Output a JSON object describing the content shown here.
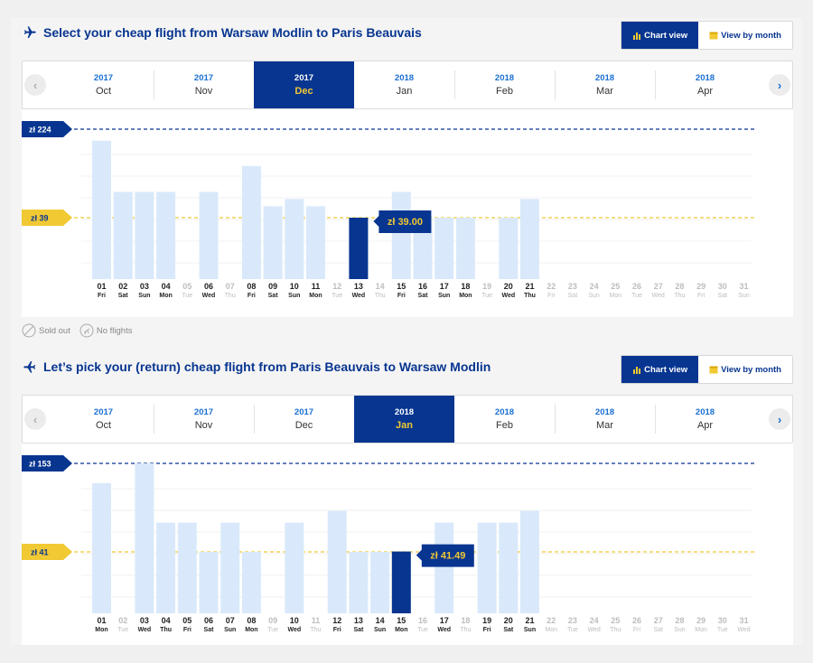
{
  "outbound": {
    "title": "Select your cheap flight from Warsaw Modlin to Paris Beauvais",
    "toggle": {
      "chart_label": "Chart view",
      "month_label": "View by month"
    },
    "months": [
      {
        "year": "2017",
        "month": "Oct",
        "selected": false
      },
      {
        "year": "2017",
        "month": "Nov",
        "selected": false
      },
      {
        "year": "2017",
        "month": "Dec",
        "selected": true
      },
      {
        "year": "2018",
        "month": "Jan",
        "selected": false
      },
      {
        "year": "2018",
        "month": "Feb",
        "selected": false
      },
      {
        "year": "2018",
        "month": "Mar",
        "selected": false
      },
      {
        "year": "2018",
        "month": "Apr",
        "selected": false
      }
    ],
    "max_label": "zł 224",
    "min_label": "zł 39",
    "tooltip": "zł 39.00",
    "chart_data": {
      "type": "bar",
      "max_price": 224,
      "min_price": 39,
      "selected_day": "13",
      "days": [
        {
          "d": "01",
          "w": "Fri",
          "v": 200,
          "a": true
        },
        {
          "d": "02",
          "w": "Sat",
          "v": 93,
          "a": true
        },
        {
          "d": "03",
          "w": "Sun",
          "v": 93,
          "a": true
        },
        {
          "d": "04",
          "w": "Mon",
          "v": 93,
          "a": true
        },
        {
          "d": "05",
          "w": "Tue",
          "v": null,
          "a": false
        },
        {
          "d": "06",
          "w": "Wed",
          "v": 93,
          "a": true
        },
        {
          "d": "07",
          "w": "Thu",
          "v": null,
          "a": false
        },
        {
          "d": "08",
          "w": "Fri",
          "v": 147,
          "a": true
        },
        {
          "d": "09",
          "w": "Sat",
          "v": 63,
          "a": true
        },
        {
          "d": "10",
          "w": "Sun",
          "v": 78,
          "a": true
        },
        {
          "d": "11",
          "w": "Mon",
          "v": 63,
          "a": true
        },
        {
          "d": "12",
          "w": "Tue",
          "v": null,
          "a": false
        },
        {
          "d": "13",
          "w": "Wed",
          "v": 39,
          "a": true
        },
        {
          "d": "14",
          "w": "Thu",
          "v": null,
          "a": false
        },
        {
          "d": "15",
          "w": "Fri",
          "v": 93,
          "a": true
        },
        {
          "d": "16",
          "w": "Sat",
          "v": 39,
          "a": true
        },
        {
          "d": "17",
          "w": "Sun",
          "v": 39,
          "a": true
        },
        {
          "d": "18",
          "w": "Mon",
          "v": 39,
          "a": true
        },
        {
          "d": "19",
          "w": "Tue",
          "v": null,
          "a": false
        },
        {
          "d": "20",
          "w": "Wed",
          "v": 39,
          "a": true
        },
        {
          "d": "21",
          "w": "Thu",
          "v": 78,
          "a": true
        },
        {
          "d": "22",
          "w": "Fri",
          "v": null,
          "a": false
        },
        {
          "d": "23",
          "w": "Sat",
          "v": null,
          "a": false
        },
        {
          "d": "24",
          "w": "Sun",
          "v": null,
          "a": false
        },
        {
          "d": "25",
          "w": "Mon",
          "v": null,
          "a": false
        },
        {
          "d": "26",
          "w": "Tue",
          "v": null,
          "a": false
        },
        {
          "d": "27",
          "w": "Wed",
          "v": null,
          "a": false
        },
        {
          "d": "28",
          "w": "Thu",
          "v": null,
          "a": false
        },
        {
          "d": "29",
          "w": "Fri",
          "v": null,
          "a": false
        },
        {
          "d": "30",
          "w": "Sat",
          "v": null,
          "a": false
        },
        {
          "d": "31",
          "w": "Sun",
          "v": null,
          "a": false
        }
      ]
    }
  },
  "legend": {
    "sold_out": "Sold out",
    "no_flights": "No flights"
  },
  "return": {
    "title": "Let’s pick your (return) cheap flight from Paris Beauvais to Warsaw Modlin",
    "toggle": {
      "chart_label": "Chart view",
      "month_label": "View by month"
    },
    "months": [
      {
        "year": "2017",
        "month": "Oct",
        "selected": false
      },
      {
        "year": "2017",
        "month": "Nov",
        "selected": false
      },
      {
        "year": "2017",
        "month": "Dec",
        "selected": false
      },
      {
        "year": "2018",
        "month": "Jan",
        "selected": true
      },
      {
        "year": "2018",
        "month": "Feb",
        "selected": false
      },
      {
        "year": "2018",
        "month": "Mar",
        "selected": false
      },
      {
        "year": "2018",
        "month": "Apr",
        "selected": false
      }
    ],
    "max_label": "zł 153",
    "min_label": "zł 41",
    "tooltip": "zł 41.49",
    "chart_data": {
      "type": "bar",
      "max_price": 153,
      "min_price": 41,
      "selected_day": "15",
      "days": [
        {
          "d": "01",
          "w": "Mon",
          "v": 128,
          "a": true
        },
        {
          "d": "02",
          "w": "Tue",
          "v": null,
          "a": false
        },
        {
          "d": "03",
          "w": "Wed",
          "v": 153,
          "a": true
        },
        {
          "d": "04",
          "w": "Thu",
          "v": 78,
          "a": true
        },
        {
          "d": "05",
          "w": "Fri",
          "v": 78,
          "a": true
        },
        {
          "d": "06",
          "w": "Sat",
          "v": 41,
          "a": true
        },
        {
          "d": "07",
          "w": "Sun",
          "v": 78,
          "a": true
        },
        {
          "d": "08",
          "w": "Mon",
          "v": 41,
          "a": true
        },
        {
          "d": "09",
          "w": "Tue",
          "v": null,
          "a": false
        },
        {
          "d": "10",
          "w": "Wed",
          "v": 78,
          "a": true
        },
        {
          "d": "11",
          "w": "Thu",
          "v": null,
          "a": false
        },
        {
          "d": "12",
          "w": "Fri",
          "v": 93,
          "a": true
        },
        {
          "d": "13",
          "w": "Sat",
          "v": 41,
          "a": true
        },
        {
          "d": "14",
          "w": "Sun",
          "v": 41,
          "a": true
        },
        {
          "d": "15",
          "w": "Mon",
          "v": 41.49,
          "a": true
        },
        {
          "d": "16",
          "w": "Tue",
          "v": null,
          "a": false
        },
        {
          "d": "17",
          "w": "Wed",
          "v": 78,
          "a": true
        },
        {
          "d": "18",
          "w": "Thu",
          "v": null,
          "a": false
        },
        {
          "d": "19",
          "w": "Fri",
          "v": 78,
          "a": true
        },
        {
          "d": "20",
          "w": "Sat",
          "v": 78,
          "a": true
        },
        {
          "d": "21",
          "w": "Sun",
          "v": 93,
          "a": true
        },
        {
          "d": "22",
          "w": "Mon",
          "v": null,
          "a": false
        },
        {
          "d": "23",
          "w": "Tue",
          "v": null,
          "a": false
        },
        {
          "d": "24",
          "w": "Wed",
          "v": null,
          "a": false
        },
        {
          "d": "25",
          "w": "Thu",
          "v": null,
          "a": false
        },
        {
          "d": "26",
          "w": "Fri",
          "v": null,
          "a": false
        },
        {
          "d": "27",
          "w": "Sat",
          "v": null,
          "a": false
        },
        {
          "d": "28",
          "w": "Sun",
          "v": null,
          "a": false
        },
        {
          "d": "29",
          "w": "Mon",
          "v": null,
          "a": false
        },
        {
          "d": "30",
          "w": "Tue",
          "v": null,
          "a": false
        },
        {
          "d": "31",
          "w": "Wed",
          "v": null,
          "a": false
        }
      ]
    }
  },
  "colors": {
    "brand": "#073590",
    "accent": "#f1c933",
    "link": "#1a6fd1",
    "bar": "#d9e9fb",
    "bar_selected": "#073590"
  },
  "icons": [
    "plane-icon",
    "bar-chart-icon",
    "calendar-icon",
    "chevron-left-icon",
    "chevron-right-icon",
    "sold-out-icon",
    "no-flights-icon"
  ]
}
